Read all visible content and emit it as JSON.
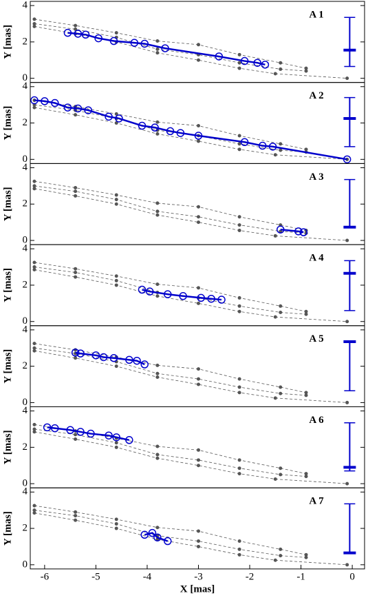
{
  "chart_data": [
    {
      "type": "scatter",
      "label": "A 1",
      "ylabel": "Y [mas]",
      "xlim": [
        -6.28,
        0.24
      ],
      "ylim": [
        -0.23,
        4.23
      ],
      "yticks": [
        0,
        2,
        4
      ],
      "series": [
        {
          "color": "#555555",
          "x": [
            -6.2,
            -5.4,
            -4.6,
            -3.8,
            -3.0,
            -2.2,
            -1.4,
            -0.9
          ],
          "y": [
            3.25,
            2.9,
            2.5,
            2.05,
            1.85,
            1.3,
            0.85,
            0.55
          ]
        },
        {
          "color": "#555555",
          "x": [
            -6.2,
            -5.4,
            -4.6,
            -3.8,
            -3.0,
            -2.2,
            -1.4,
            -0.9
          ],
          "y": [
            3.0,
            2.7,
            2.25,
            1.6,
            1.3,
            0.85,
            0.5,
            0.4
          ]
        },
        {
          "color": "#555555",
          "x": [
            -6.2,
            -5.4,
            -4.6,
            -3.8,
            -3.0,
            -2.2,
            -1.5,
            -0.1
          ],
          "y": [
            2.85,
            2.45,
            2.0,
            1.4,
            1.0,
            0.55,
            0.25,
            0.0
          ]
        },
        {
          "color": "#0000cc",
          "x": [
            -5.55,
            -5.35,
            -5.2,
            -4.95,
            -4.65,
            -4.25,
            -4.05,
            -3.65,
            -2.6,
            -2.1,
            -1.85,
            -1.7
          ],
          "y": [
            2.5,
            2.45,
            2.4,
            2.2,
            2.05,
            1.95,
            1.9,
            1.65,
            1.2,
            0.95,
            0.85,
            0.75
          ]
        }
      ],
      "errorbar": {
        "x": -0.05,
        "y": 1.55,
        "low": 0.65,
        "high": 3.35
      }
    },
    {
      "type": "scatter",
      "label": "A 2",
      "ylabel": "Y [mas]",
      "xlim": [
        -6.28,
        0.24
      ],
      "ylim": [
        -0.23,
        4.23
      ],
      "yticks": [
        0,
        2,
        4
      ],
      "series": [
        {
          "color": "#555555",
          "x": [
            -6.2,
            -5.4,
            -4.6,
            -3.8,
            -3.0,
            -2.2,
            -1.4,
            -0.9
          ],
          "y": [
            3.25,
            2.9,
            2.5,
            2.05,
            1.85,
            1.3,
            0.85,
            0.55
          ]
        },
        {
          "color": "#555555",
          "x": [
            -6.2,
            -5.4,
            -4.6,
            -3.8,
            -3.0,
            -2.2,
            -1.4,
            -0.9
          ],
          "y": [
            3.0,
            2.7,
            2.25,
            1.6,
            1.3,
            0.85,
            0.5,
            0.4
          ]
        },
        {
          "color": "#555555",
          "x": [
            -6.2,
            -5.4,
            -4.6,
            -3.8,
            -3.0,
            -2.2,
            -1.5,
            -0.1
          ],
          "y": [
            2.85,
            2.45,
            2.0,
            1.4,
            1.0,
            0.55,
            0.25,
            0.0
          ]
        },
        {
          "color": "#0000cc",
          "x": [
            -6.2,
            -6.0,
            -5.8,
            -5.55,
            -5.35,
            -5.15,
            -4.75,
            -4.55,
            -4.1,
            -3.85,
            -3.55,
            -3.35,
            -3.0,
            -2.1,
            -1.75,
            -1.55,
            -0.1
          ],
          "y": [
            3.25,
            3.2,
            3.1,
            2.85,
            2.8,
            2.7,
            2.35,
            2.25,
            1.85,
            1.75,
            1.55,
            1.45,
            1.3,
            0.95,
            0.75,
            0.7,
            0.0
          ]
        }
      ],
      "errorbar": {
        "x": -0.05,
        "y": 2.25,
        "low": 0.7,
        "high": 3.4
      }
    },
    {
      "type": "scatter",
      "label": "A 3",
      "ylabel": "Y [mas]",
      "xlim": [
        -6.28,
        0.24
      ],
      "ylim": [
        -0.23,
        4.23
      ],
      "yticks": [
        0,
        2,
        4
      ],
      "series": [
        {
          "color": "#555555",
          "x": [
            -6.2,
            -5.4,
            -4.6,
            -3.8,
            -3.0,
            -2.2,
            -1.4,
            -0.9
          ],
          "y": [
            3.25,
            2.9,
            2.5,
            2.05,
            1.85,
            1.3,
            0.85,
            0.55
          ]
        },
        {
          "color": "#555555",
          "x": [
            -6.2,
            -5.4,
            -4.6,
            -3.8,
            -3.0,
            -2.2,
            -1.4,
            -0.9
          ],
          "y": [
            3.0,
            2.7,
            2.25,
            1.6,
            1.3,
            0.85,
            0.5,
            0.4
          ]
        },
        {
          "color": "#555555",
          "x": [
            -6.2,
            -5.4,
            -4.6,
            -3.8,
            -3.0,
            -2.2,
            -1.5,
            -0.1
          ],
          "y": [
            2.85,
            2.45,
            2.0,
            1.4,
            1.0,
            0.55,
            0.25,
            0.0
          ]
        },
        {
          "color": "#0000cc",
          "x": [
            -1.4,
            -1.05,
            -0.95
          ],
          "y": [
            0.6,
            0.5,
            0.45
          ]
        }
      ],
      "errorbar": {
        "x": -0.05,
        "y": 0.73,
        "low": 0.7,
        "high": 3.35
      }
    },
    {
      "type": "scatter",
      "label": "A 4",
      "ylabel": "Y [mas]",
      "xlim": [
        -6.28,
        0.24
      ],
      "ylim": [
        -0.23,
        4.23
      ],
      "yticks": [
        0,
        2,
        4
      ],
      "series": [
        {
          "color": "#555555",
          "x": [
            -6.2,
            -5.4,
            -4.6,
            -3.8,
            -3.0,
            -2.2,
            -1.4,
            -0.9
          ],
          "y": [
            3.25,
            2.9,
            2.5,
            2.05,
            1.85,
            1.3,
            0.85,
            0.55
          ]
        },
        {
          "color": "#555555",
          "x": [
            -6.2,
            -5.4,
            -4.6,
            -3.8,
            -3.0,
            -2.2,
            -1.4,
            -0.9
          ],
          "y": [
            3.0,
            2.7,
            2.25,
            1.6,
            1.3,
            0.85,
            0.5,
            0.4
          ]
        },
        {
          "color": "#555555",
          "x": [
            -6.2,
            -5.4,
            -4.6,
            -3.8,
            -3.0,
            -2.2,
            -1.5,
            -0.1
          ],
          "y": [
            2.85,
            2.45,
            2.0,
            1.4,
            1.0,
            0.55,
            0.25,
            0.0
          ]
        },
        {
          "color": "#0000cc",
          "x": [
            -4.1,
            -3.95,
            -3.6,
            -3.3,
            -2.95,
            -2.75,
            -2.55
          ],
          "y": [
            1.75,
            1.65,
            1.5,
            1.4,
            1.3,
            1.25,
            1.2
          ]
        }
      ],
      "errorbar": {
        "x": -0.05,
        "y": 2.65,
        "low": 0.6,
        "high": 3.35
      }
    },
    {
      "type": "scatter",
      "label": "A 5",
      "ylabel": "Y [mas]",
      "xlim": [
        -6.28,
        0.24
      ],
      "ylim": [
        -0.23,
        4.23
      ],
      "yticks": [
        0,
        2,
        4
      ],
      "series": [
        {
          "color": "#555555",
          "x": [
            -6.2,
            -5.4,
            -4.6,
            -3.8,
            -3.0,
            -2.2,
            -1.4,
            -0.9
          ],
          "y": [
            3.25,
            2.9,
            2.5,
            2.05,
            1.85,
            1.3,
            0.85,
            0.55
          ]
        },
        {
          "color": "#555555",
          "x": [
            -6.2,
            -5.4,
            -4.6,
            -3.8,
            -3.0,
            -2.2,
            -1.4,
            -0.9
          ],
          "y": [
            3.0,
            2.7,
            2.25,
            1.6,
            1.3,
            0.85,
            0.5,
            0.4
          ]
        },
        {
          "color": "#555555",
          "x": [
            -6.2,
            -5.4,
            -4.6,
            -3.8,
            -3.0,
            -2.2,
            -1.5,
            -0.1
          ],
          "y": [
            2.85,
            2.45,
            2.0,
            1.4,
            1.0,
            0.55,
            0.25,
            0.0
          ]
        },
        {
          "color": "#0000cc",
          "x": [
            -5.4,
            -5.3,
            -5.0,
            -4.85,
            -4.65,
            -4.35,
            -4.2,
            -4.05
          ],
          "y": [
            2.75,
            2.7,
            2.6,
            2.5,
            2.45,
            2.35,
            2.3,
            2.1
          ]
        }
      ],
      "errorbar": {
        "x": -0.05,
        "y": 3.35,
        "low": 0.65,
        "high": 3.4
      }
    },
    {
      "type": "scatter",
      "label": "A 6",
      "ylabel": "Y [mas]",
      "xlim": [
        -6.28,
        0.24
      ],
      "ylim": [
        -0.23,
        4.23
      ],
      "yticks": [
        0,
        2,
        4
      ],
      "series": [
        {
          "color": "#555555",
          "x": [
            -6.2,
            -5.4,
            -4.6,
            -3.8,
            -3.0,
            -2.2,
            -1.4,
            -0.9
          ],
          "y": [
            3.25,
            2.9,
            2.5,
            2.05,
            1.85,
            1.3,
            0.85,
            0.55
          ]
        },
        {
          "color": "#555555",
          "x": [
            -6.2,
            -5.4,
            -4.6,
            -3.8,
            -3.0,
            -2.2,
            -1.4,
            -0.9
          ],
          "y": [
            3.0,
            2.7,
            2.25,
            1.6,
            1.3,
            0.85,
            0.5,
            0.4
          ]
        },
        {
          "color": "#555555",
          "x": [
            -6.2,
            -5.4,
            -4.6,
            -3.8,
            -3.0,
            -2.2,
            -1.5,
            -0.1
          ],
          "y": [
            2.85,
            2.45,
            2.0,
            1.4,
            1.0,
            0.55,
            0.25,
            0.0
          ]
        },
        {
          "color": "#0000cc",
          "x": [
            -5.95,
            -5.8,
            -5.5,
            -5.3,
            -5.1,
            -4.75,
            -4.6,
            -4.35
          ],
          "y": [
            3.1,
            3.05,
            2.95,
            2.85,
            2.75,
            2.65,
            2.55,
            2.4
          ]
        }
      ],
      "errorbar": {
        "x": -0.05,
        "y": 0.9,
        "low": 0.7,
        "high": 3.35
      }
    },
    {
      "type": "scatter",
      "label": "A 7",
      "ylabel": "Y [mas]",
      "xlabel": "X [mas]",
      "xlim": [
        -6.28,
        0.24
      ],
      "ylim": [
        -0.23,
        4.23
      ],
      "yticks": [
        0,
        2,
        4
      ],
      "xticks": [
        -6,
        -5,
        -4,
        -3,
        -2,
        -1,
        0
      ],
      "series": [
        {
          "color": "#555555",
          "x": [
            -6.2,
            -5.4,
            -4.6,
            -3.8,
            -3.0,
            -2.2,
            -1.4,
            -0.9
          ],
          "y": [
            3.25,
            2.9,
            2.5,
            2.05,
            1.85,
            1.3,
            0.85,
            0.55
          ]
        },
        {
          "color": "#555555",
          "x": [
            -6.2,
            -5.4,
            -4.6,
            -3.8,
            -3.0,
            -2.2,
            -1.4,
            -0.9
          ],
          "y": [
            3.0,
            2.7,
            2.25,
            1.6,
            1.3,
            0.85,
            0.5,
            0.4
          ]
        },
        {
          "color": "#555555",
          "x": [
            -6.2,
            -5.4,
            -4.6,
            -3.8,
            -3.0,
            -2.2,
            -1.5,
            -0.1
          ],
          "y": [
            2.85,
            2.45,
            2.0,
            1.4,
            1.0,
            0.55,
            0.25,
            0.0
          ]
        },
        {
          "color": "#0000cc",
          "x": [
            -4.05,
            -3.9,
            -3.8,
            -3.6
          ],
          "y": [
            1.65,
            1.75,
            1.5,
            1.3
          ]
        }
      ],
      "errorbar": {
        "x": -0.05,
        "y": 0.65,
        "low": 0.65,
        "high": 3.35
      }
    }
  ]
}
